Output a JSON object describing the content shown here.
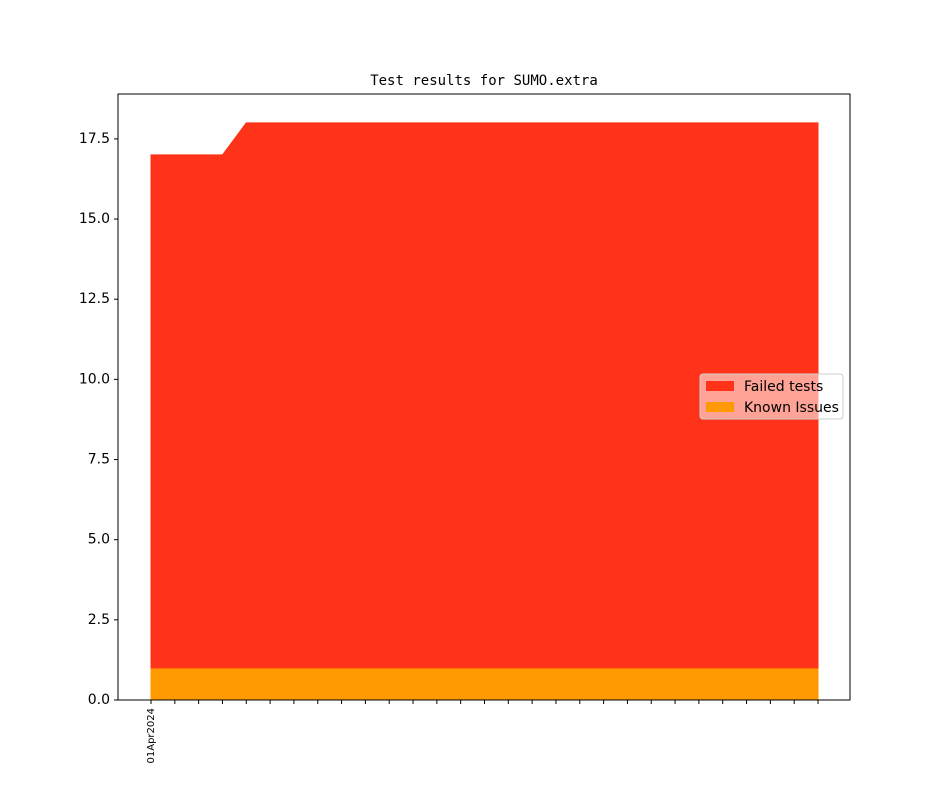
{
  "chart_data": {
    "type": "stacked_area",
    "title": "Test results for SUMO.extra",
    "categories": [
      "01Apr2024",
      null,
      null,
      null,
      null,
      null,
      null,
      null,
      null,
      null,
      null,
      null,
      null,
      null,
      null,
      null,
      null,
      null,
      null,
      null,
      null,
      null,
      null,
      null,
      null,
      null,
      null,
      null,
      null
    ],
    "series": [
      {
        "name": "Known Issues",
        "color": "#ff9900",
        "values": [
          1,
          1,
          1,
          1,
          1,
          1,
          1,
          1,
          1,
          1,
          1,
          1,
          1,
          1,
          1,
          1,
          1,
          1,
          1,
          1,
          1,
          1,
          1,
          1,
          1,
          1,
          1,
          1,
          1
        ]
      },
      {
        "name": "Failed tests",
        "color": "#ff331a",
        "values": [
          16,
          16,
          16,
          16,
          17,
          17,
          17,
          17,
          17,
          17,
          17,
          17,
          17,
          17,
          17,
          17,
          17,
          17,
          17,
          17,
          17,
          17,
          17,
          17,
          17,
          17,
          17,
          17,
          17
        ]
      }
    ],
    "legend_order": [
      "Failed tests",
      "Known Issues"
    ],
    "legend_position": "right",
    "ylim": [
      0,
      18.9
    ],
    "yticks": [
      {
        "value": 0,
        "label": "0.0"
      },
      2.5,
      {
        "value": 5,
        "label": "5.0"
      },
      7.5,
      {
        "value": 10,
        "label": "10.0"
      },
      12.5,
      {
        "value": 15,
        "label": "15.0"
      },
      17.5
    ],
    "grid": false
  }
}
